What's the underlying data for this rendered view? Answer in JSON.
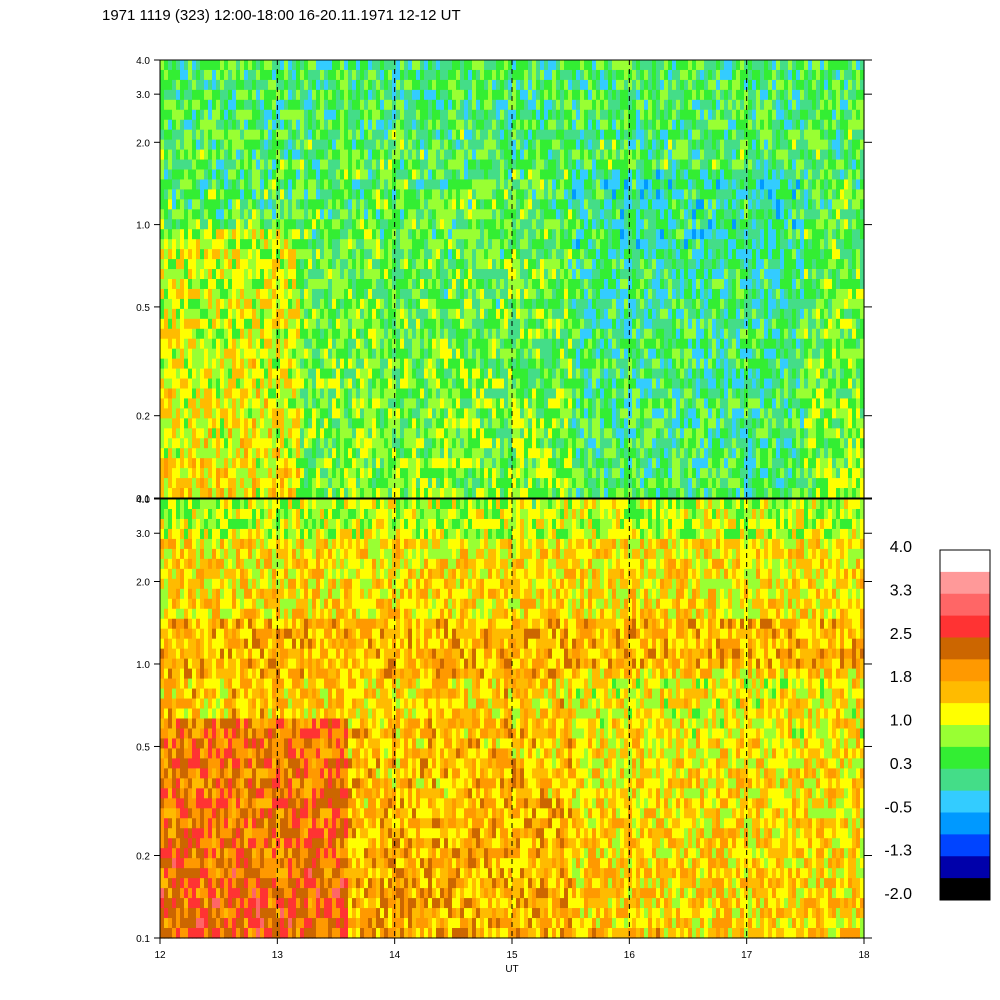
{
  "title": "1971 1119 (323) 12:00-18:00 16-20.11.1971  12-12 UT",
  "chart_data": {
    "type": "heatmap",
    "xlabel": "UT",
    "x_ticks": [
      "12",
      "13",
      "14",
      "15",
      "16",
      "17",
      "18"
    ],
    "xlim": [
      12,
      18
    ],
    "y_scale": "log",
    "ylim": [
      0.1,
      4.0
    ],
    "y_ticks": [
      "0.1",
      "0.2",
      "0.5",
      "1.0",
      "2.0",
      "3.0",
      "4.0"
    ],
    "grid": "dashed vertical lines at each hour",
    "panels": [
      {
        "name": "upper",
        "dominant_values": "mostly -0.5 to 1.0 (blue-green-yellow), lower near 0.5 and around 16 UT"
      },
      {
        "name": "lower",
        "dominant_values": "mostly 1.0 to 2.5 (yellow-orange-brown), highest near 0.3 around 12.5 UT"
      }
    ],
    "colorbar": {
      "labels": [
        "4.0",
        "3.3",
        "2.5",
        "1.8",
        "1.0",
        "0.3",
        "-0.5",
        "-1.3",
        "-2.0"
      ],
      "colors": [
        "#ffffff",
        "#ff9999",
        "#ff6666",
        "#ff3333",
        "#cc6600",
        "#ff9900",
        "#ffbb00",
        "#ffff00",
        "#99ff33",
        "#33ee33",
        "#44dd88",
        "#33ccff",
        "#0099ff",
        "#0044ff",
        "#0000aa",
        "#000000"
      ]
    }
  }
}
